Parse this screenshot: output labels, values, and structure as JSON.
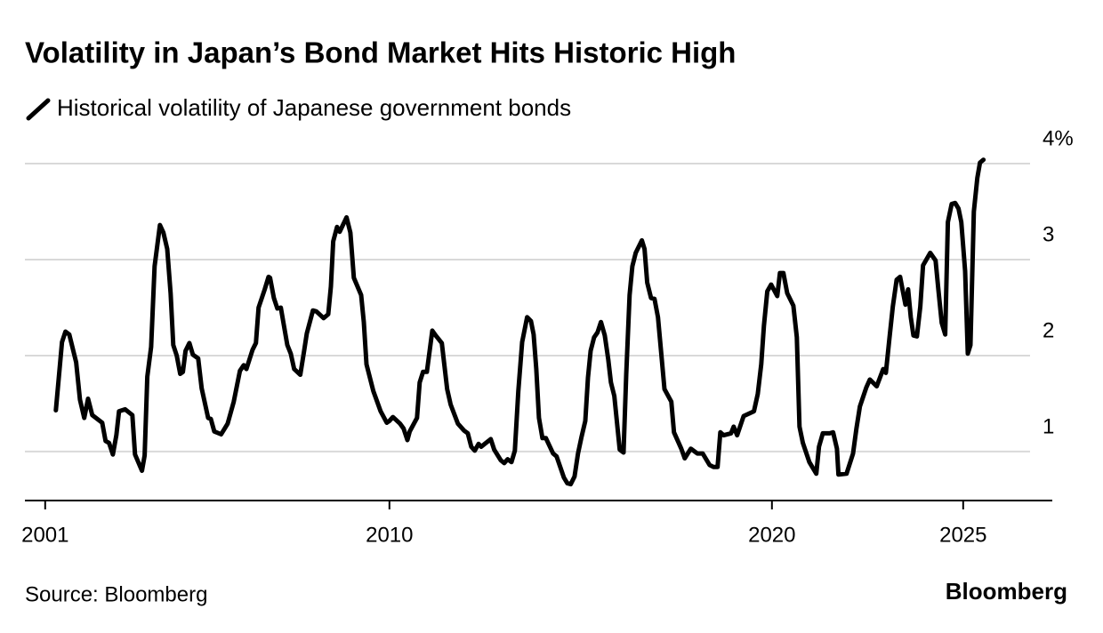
{
  "chart_data": {
    "type": "line",
    "title": "Volatility in Japan’s Bond Market Hits Historic High",
    "source": "Source: Bloomberg",
    "brand": "Bloomberg",
    "xlim": [
      2000.47,
      2027.33
    ],
    "xticks": [
      2001,
      2010,
      2020,
      2025
    ],
    "ylim": [
      0.49,
      4.0
    ],
    "yticks": [
      1,
      2,
      3,
      {
        "value": 4,
        "label": "4%"
      }
    ],
    "grid": true,
    "series": [
      {
        "name": "Historical volatility of Japanese government bonds",
        "color": "#000000",
        "x": [
          2001.28,
          2001.44,
          2001.53,
          2001.63,
          2001.81,
          2001.91,
          2002.02,
          2002.12,
          2002.23,
          2002.49,
          2002.58,
          2002.67,
          2002.77,
          2002.86,
          2002.93,
          2003.09,
          2003.28,
          2003.35,
          2003.53,
          2003.6,
          2003.67,
          2003.77,
          2003.86,
          2004.0,
          2004.09,
          2004.19,
          2004.28,
          2004.35,
          2004.44,
          2004.53,
          2004.6,
          2004.67,
          2004.77,
          2004.86,
          2005.0,
          2005.09,
          2005.26,
          2005.33,
          2005.42,
          2005.6,
          2005.77,
          2005.93,
          2006.09,
          2006.19,
          2006.26,
          2006.42,
          2006.51,
          2006.58,
          2006.74,
          2006.84,
          2006.88,
          2006.98,
          2007.07,
          2007.16,
          2007.33,
          2007.42,
          2007.51,
          2007.67,
          2007.77,
          2007.84,
          2008.0,
          2008.09,
          2008.28,
          2008.4,
          2008.47,
          2008.53,
          2008.63,
          2008.7,
          2008.88,
          2008.98,
          2009.07,
          2009.26,
          2009.33,
          2009.4,
          2009.58,
          2009.77,
          2009.93,
          2010.0,
          2010.09,
          2010.28,
          2010.37,
          2010.47,
          2010.53,
          2010.72,
          2010.79,
          2010.88,
          2010.98,
          2011.12,
          2011.21,
          2011.37,
          2011.51,
          2011.6,
          2011.79,
          2011.95,
          2012.05,
          2012.14,
          2012.23,
          2012.33,
          2012.4,
          2012.49,
          2012.65,
          2012.74,
          2012.91,
          2013.0,
          2013.09,
          2013.19,
          2013.28,
          2013.37,
          2013.47,
          2013.6,
          2013.7,
          2013.77,
          2013.84,
          2013.91,
          2014.0,
          2014.09,
          2014.28,
          2014.37,
          2014.56,
          2014.65,
          2014.74,
          2014.84,
          2014.93,
          2015.02,
          2015.12,
          2015.19,
          2015.26,
          2015.35,
          2015.44,
          2015.53,
          2015.63,
          2015.72,
          2015.79,
          2015.88,
          2016.02,
          2016.12,
          2016.19,
          2016.28,
          2016.35,
          2016.44,
          2016.6,
          2016.67,
          2016.74,
          2016.84,
          2016.93,
          2017.02,
          2017.12,
          2017.19,
          2017.37,
          2017.44,
          2017.63,
          2017.72,
          2017.88,
          2018.05,
          2018.19,
          2018.37,
          2018.47,
          2018.58,
          2018.65,
          2018.74,
          2018.93,
          2019.0,
          2019.09,
          2019.26,
          2019.53,
          2019.63,
          2019.72,
          2019.79,
          2019.88,
          2019.98,
          2020.14,
          2020.21,
          2020.3,
          2020.4,
          2020.56,
          2020.65,
          2020.72,
          2020.81,
          2020.98,
          2021.16,
          2021.23,
          2021.33,
          2021.51,
          2021.6,
          2021.7,
          2021.74,
          2021.95,
          2022.12,
          2022.21,
          2022.3,
          2022.47,
          2022.56,
          2022.74,
          2022.91,
          2022.98,
          2023.07,
          2023.16,
          2023.26,
          2023.35,
          2023.49,
          2023.56,
          2023.63,
          2023.7,
          2023.79,
          2023.88,
          2023.95,
          2024.14,
          2024.28,
          2024.35,
          2024.44,
          2024.53,
          2024.6,
          2024.7,
          2024.79,
          2024.88,
          2024.95,
          2025.05,
          2025.12,
          2025.19,
          2025.28,
          2025.37,
          2025.44,
          2025.53
        ],
        "values": [
          1.43,
          2.14,
          2.25,
          2.22,
          1.93,
          1.54,
          1.35,
          1.55,
          1.38,
          1.3,
          1.11,
          1.09,
          0.97,
          1.17,
          1.42,
          1.44,
          1.38,
          0.97,
          0.8,
          0.96,
          1.78,
          2.09,
          2.93,
          3.36,
          3.28,
          3.11,
          2.65,
          2.11,
          2.0,
          1.81,
          1.83,
          2.05,
          2.13,
          2.01,
          1.97,
          1.66,
          1.35,
          1.34,
          1.21,
          1.18,
          1.29,
          1.52,
          1.84,
          1.9,
          1.86,
          2.06,
          2.13,
          2.5,
          2.69,
          2.82,
          2.81,
          2.6,
          2.49,
          2.5,
          2.11,
          2.02,
          1.86,
          1.8,
          2.05,
          2.23,
          2.47,
          2.46,
          2.39,
          2.43,
          2.72,
          3.19,
          3.34,
          3.29,
          3.44,
          3.28,
          2.81,
          2.63,
          2.35,
          1.91,
          1.63,
          1.42,
          1.3,
          1.32,
          1.36,
          1.29,
          1.24,
          1.12,
          1.21,
          1.35,
          1.72,
          1.83,
          1.83,
          2.26,
          2.21,
          2.13,
          1.65,
          1.49,
          1.29,
          1.22,
          1.19,
          1.05,
          1.01,
          1.08,
          1.05,
          1.08,
          1.13,
          1.02,
          0.91,
          0.88,
          0.92,
          0.89,
          1.01,
          1.63,
          2.14,
          2.4,
          2.36,
          2.22,
          1.86,
          1.35,
          1.14,
          1.14,
          0.98,
          0.95,
          0.73,
          0.67,
          0.66,
          0.74,
          0.98,
          1.15,
          1.32,
          1.77,
          2.05,
          2.19,
          2.24,
          2.35,
          2.21,
          1.96,
          1.72,
          1.58,
          1.02,
          0.99,
          1.8,
          2.63,
          2.93,
          3.07,
          3.2,
          3.11,
          2.76,
          2.6,
          2.59,
          2.4,
          1.96,
          1.65,
          1.52,
          1.2,
          1.03,
          0.93,
          1.03,
          0.98,
          0.98,
          0.86,
          0.84,
          0.84,
          1.2,
          1.17,
          1.19,
          1.26,
          1.17,
          1.37,
          1.42,
          1.6,
          1.91,
          2.31,
          2.67,
          2.74,
          2.62,
          2.86,
          2.86,
          2.65,
          2.52,
          2.19,
          1.26,
          1.09,
          0.89,
          0.77,
          1.05,
          1.19,
          1.19,
          1.2,
          1.03,
          0.76,
          0.77,
          0.98,
          1.24,
          1.47,
          1.67,
          1.75,
          1.68,
          1.86,
          1.82,
          2.17,
          2.51,
          2.79,
          2.82,
          2.53,
          2.69,
          2.4,
          2.21,
          2.2,
          2.51,
          2.94,
          3.07,
          2.99,
          2.69,
          2.34,
          2.22,
          3.39,
          3.58,
          3.59,
          3.53,
          3.39,
          2.88,
          2.02,
          2.11,
          3.5,
          3.85,
          4.01,
          4.04
        ]
      }
    ]
  }
}
